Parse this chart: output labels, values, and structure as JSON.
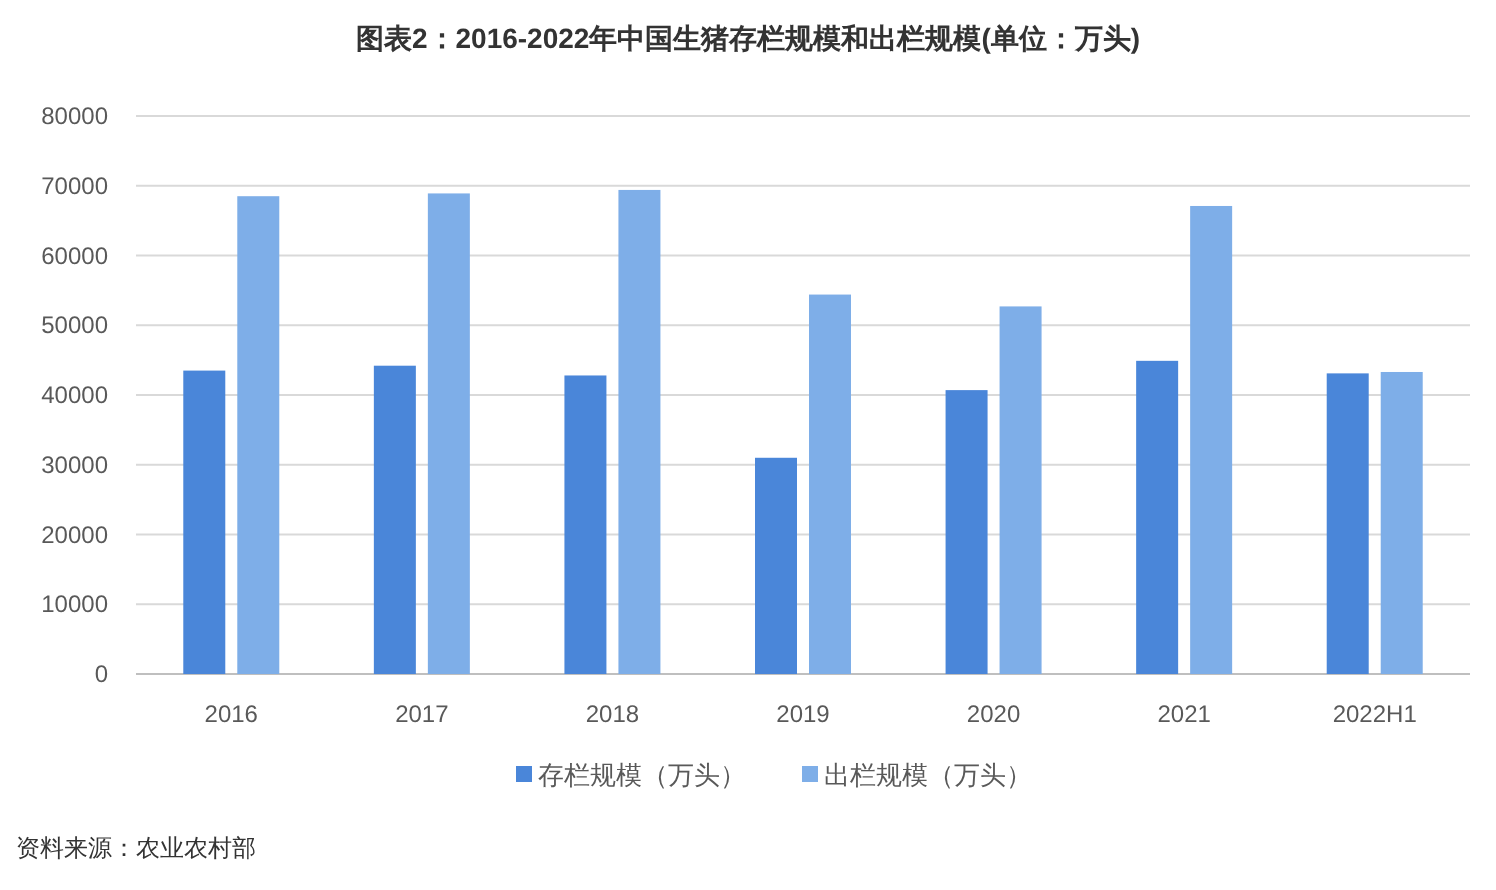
{
  "chart_data": {
    "type": "bar",
    "title": "图表2：2016-2022年中国生猪存栏规模和出栏规模(单位：万头)",
    "categories": [
      "2016",
      "2017",
      "2018",
      "2019",
      "2020",
      "2021",
      "2022H1"
    ],
    "series": [
      {
        "name": "存栏规模（万头）",
        "color": "#4a86d9",
        "values": [
          43500,
          44200,
          42800,
          31000,
          40700,
          44900,
          43100
        ]
      },
      {
        "name": "出栏规模（万头）",
        "color": "#7eaee8",
        "values": [
          68500,
          68900,
          69400,
          54400,
          52700,
          67100,
          43300
        ]
      }
    ],
    "ylim": [
      0,
      80000
    ],
    "yticks": [
      0,
      10000,
      20000,
      30000,
      40000,
      50000,
      60000,
      70000,
      80000
    ],
    "grid": "y",
    "legend": "bottom",
    "annotations": [
      "资料来源：农业农村部"
    ]
  }
}
